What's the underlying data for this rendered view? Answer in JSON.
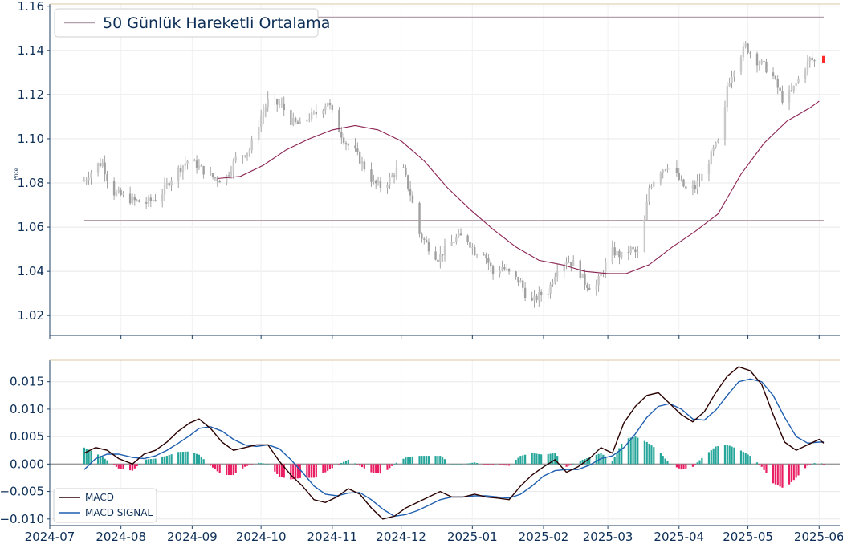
{
  "chart_data": [
    {
      "type": "candlestick",
      "ylabel": "Price",
      "ylim": [
        1.011,
        1.161
      ],
      "y_ticks": [
        "1.02",
        "1.04",
        "1.06",
        "1.08",
        "1.10",
        "1.12",
        "1.14",
        "1.16"
      ],
      "x_range": [
        "2024-07-01",
        "2025-06-10"
      ],
      "horizontal_lines": [
        1.155,
        1.063
      ],
      "legend": {
        "position": "top-left",
        "label": "50 Günlük Hareketli Ortalama"
      },
      "grid": true,
      "ma50": [
        [
          "2024-09-12",
          1.082
        ],
        [
          "2024-09-22",
          1.083
        ],
        [
          "2024-10-02",
          1.088
        ],
        [
          "2024-10-12",
          1.095
        ],
        [
          "2024-10-22",
          1.1
        ],
        [
          "2024-11-01",
          1.104
        ],
        [
          "2024-11-11",
          1.106
        ],
        [
          "2024-11-21",
          1.104
        ],
        [
          "2024-12-01",
          1.099
        ],
        [
          "2024-12-11",
          1.09
        ],
        [
          "2024-12-21",
          1.078
        ],
        [
          "2024-12-31",
          1.068
        ],
        [
          "2025-01-10",
          1.059
        ],
        [
          "2025-01-20",
          1.051
        ],
        [
          "2025-01-30",
          1.045
        ],
        [
          "2025-02-09",
          1.043
        ],
        [
          "2025-02-19",
          1.04
        ],
        [
          "2025-03-01",
          1.039
        ],
        [
          "2025-03-09",
          1.039
        ],
        [
          "2025-03-19",
          1.043
        ],
        [
          "2025-03-29",
          1.051
        ],
        [
          "2025-04-08",
          1.058
        ],
        [
          "2025-04-18",
          1.066
        ],
        [
          "2025-04-28",
          1.084
        ],
        [
          "2025-05-08",
          1.098
        ],
        [
          "2025-05-18",
          1.108
        ],
        [
          "2025-05-28",
          1.114
        ],
        [
          "2025-06-01",
          1.117
        ]
      ],
      "price_path": [
        [
          "2024-07-16",
          1.081
        ],
        [
          "2024-07-21",
          1.088
        ],
        [
          "2024-07-24",
          1.089
        ],
        [
          "2024-07-28",
          1.076
        ],
        [
          "2024-08-02",
          1.074
        ],
        [
          "2024-08-06",
          1.072
        ],
        [
          "2024-08-12",
          1.071
        ],
        [
          "2024-08-18",
          1.074
        ],
        [
          "2024-08-24",
          1.084
        ],
        [
          "2024-08-30",
          1.09
        ],
        [
          "2024-09-03",
          1.088
        ],
        [
          "2024-09-09",
          1.083
        ],
        [
          "2024-09-15",
          1.081
        ],
        [
          "2024-09-20",
          1.091
        ],
        [
          "2024-09-26",
          1.095
        ],
        [
          "2024-10-01",
          1.11
        ],
        [
          "2024-10-04",
          1.117
        ],
        [
          "2024-10-10",
          1.115
        ],
        [
          "2024-10-14",
          1.108
        ],
        [
          "2024-10-18",
          1.106
        ],
        [
          "2024-10-22",
          1.11
        ],
        [
          "2024-10-26",
          1.112
        ],
        [
          "2024-10-30",
          1.117
        ],
        [
          "2024-11-03",
          1.106
        ],
        [
          "2024-11-07",
          1.098
        ],
        [
          "2024-11-11",
          1.094
        ],
        [
          "2024-11-15",
          1.087
        ],
        [
          "2024-11-19",
          1.08
        ],
        [
          "2024-11-23",
          1.078
        ],
        [
          "2024-11-27",
          1.083
        ],
        [
          "2024-12-01",
          1.089
        ],
        [
          "2024-12-05",
          1.075
        ],
        [
          "2024-12-09",
          1.057
        ],
        [
          "2024-12-13",
          1.051
        ],
        [
          "2024-12-17",
          1.046
        ],
        [
          "2024-12-21",
          1.051
        ],
        [
          "2024-12-25",
          1.055
        ],
        [
          "2024-12-29",
          1.056
        ],
        [
          "2025-01-02",
          1.049
        ],
        [
          "2025-01-06",
          1.049
        ],
        [
          "2025-01-10",
          1.039
        ],
        [
          "2025-01-14",
          1.042
        ],
        [
          "2025-01-18",
          1.038
        ],
        [
          "2025-01-22",
          1.035
        ],
        [
          "2025-01-26",
          1.025
        ],
        [
          "2025-01-30",
          1.029
        ],
        [
          "2025-02-03",
          1.031
        ],
        [
          "2025-02-07",
          1.042
        ],
        [
          "2025-02-11",
          1.045
        ],
        [
          "2025-02-15",
          1.043
        ],
        [
          "2025-02-19",
          1.035
        ],
        [
          "2025-02-23",
          1.031
        ],
        [
          "2025-02-27",
          1.041
        ],
        [
          "2025-03-03",
          1.049
        ],
        [
          "2025-03-07",
          1.047
        ],
        [
          "2025-03-11",
          1.05
        ],
        [
          "2025-03-15",
          1.047
        ],
        [
          "2025-03-19",
          1.078
        ],
        [
          "2025-03-23",
          1.085
        ],
        [
          "2025-03-27",
          1.088
        ],
        [
          "2025-03-31",
          1.083
        ],
        [
          "2025-04-04",
          1.077
        ],
        [
          "2025-04-08",
          1.078
        ],
        [
          "2025-04-12",
          1.085
        ],
        [
          "2025-04-16",
          1.095
        ],
        [
          "2025-04-20",
          1.102
        ],
        [
          "2025-04-22",
          1.124
        ],
        [
          "2025-04-26",
          1.135
        ],
        [
          "2025-04-30",
          1.142
        ],
        [
          "2025-05-04",
          1.136
        ],
        [
          "2025-05-08",
          1.133
        ],
        [
          "2025-05-12",
          1.128
        ],
        [
          "2025-05-16",
          1.118
        ],
        [
          "2025-05-20",
          1.121
        ],
        [
          "2025-05-24",
          1.129
        ],
        [
          "2025-05-28",
          1.136
        ],
        [
          "2025-06-01",
          1.134
        ]
      ]
    },
    {
      "type": "line+bar",
      "ylim": [
        -0.0112,
        0.0189
      ],
      "y_ticks": [
        "−0.010",
        "−0.005",
        "0.000",
        "0.005",
        "0.010",
        "0.015"
      ],
      "x_ticks": [
        "2024-07",
        "2024-08",
        "2024-09",
        "2024-10",
        "2024-11",
        "2024-12",
        "2025-01",
        "2025-02",
        "2025-03",
        "2025-04",
        "2025-05",
        "2025-06"
      ],
      "legend": {
        "position": "lower-left"
      },
      "series": [
        {
          "name": "MACD",
          "color": "#2a0000",
          "points": [
            [
              "2024-07-16",
              0.002
            ],
            [
              "2024-07-21",
              0.003
            ],
            [
              "2024-07-26",
              0.0025
            ],
            [
              "2024-07-31",
              0.001
            ],
            [
              "2024-08-06",
              0.0
            ],
            [
              "2024-08-11",
              0.0018
            ],
            [
              "2024-08-16",
              0.0025
            ],
            [
              "2024-08-21",
              0.004
            ],
            [
              "2024-08-26",
              0.006
            ],
            [
              "2024-08-31",
              0.0075
            ],
            [
              "2024-09-04",
              0.0082
            ],
            [
              "2024-09-09",
              0.0065
            ],
            [
              "2024-09-14",
              0.004
            ],
            [
              "2024-09-19",
              0.0025
            ],
            [
              "2024-09-24",
              0.003
            ],
            [
              "2024-09-29",
              0.0035
            ],
            [
              "2024-10-04",
              0.0035
            ],
            [
              "2024-10-09",
              0.0005
            ],
            [
              "2024-10-14",
              -0.002
            ],
            [
              "2024-10-19",
              -0.004
            ],
            [
              "2024-10-24",
              -0.0065
            ],
            [
              "2024-10-29",
              -0.007
            ],
            [
              "2024-11-03",
              -0.006
            ],
            [
              "2024-11-08",
              -0.0045
            ],
            [
              "2024-11-13",
              -0.0055
            ],
            [
              "2024-11-18",
              -0.008
            ],
            [
              "2024-11-23",
              -0.01
            ],
            [
              "2024-11-28",
              -0.0095
            ],
            [
              "2024-12-03",
              -0.008
            ],
            [
              "2024-12-08",
              -0.007
            ],
            [
              "2024-12-13",
              -0.006
            ],
            [
              "2024-12-18",
              -0.005
            ],
            [
              "2024-12-23",
              -0.006
            ],
            [
              "2024-12-28",
              -0.006
            ],
            [
              "2025-01-02",
              -0.0055
            ],
            [
              "2025-01-07",
              -0.006
            ],
            [
              "2025-01-12",
              -0.0062
            ],
            [
              "2025-01-17",
              -0.0065
            ],
            [
              "2025-01-22",
              -0.004
            ],
            [
              "2025-01-27",
              -0.002
            ],
            [
              "2025-02-01",
              -0.0005
            ],
            [
              "2025-02-06",
              0.0008
            ],
            [
              "2025-02-11",
              -0.0015
            ],
            [
              "2025-02-16",
              -0.0005
            ],
            [
              "2025-02-21",
              0.001
            ],
            [
              "2025-02-26",
              0.003
            ],
            [
              "2025-03-03",
              0.002
            ],
            [
              "2025-03-08",
              0.0075
            ],
            [
              "2025-03-13",
              0.0105
            ],
            [
              "2025-03-18",
              0.0125
            ],
            [
              "2025-03-23",
              0.013
            ],
            [
              "2025-03-28",
              0.011
            ],
            [
              "2025-04-02",
              0.009
            ],
            [
              "2025-04-07",
              0.0077
            ],
            [
              "2025-04-12",
              0.0095
            ],
            [
              "2025-04-17",
              0.013
            ],
            [
              "2025-04-22",
              0.016
            ],
            [
              "2025-04-27",
              0.0177
            ],
            [
              "2025-05-02",
              0.017
            ],
            [
              "2025-05-07",
              0.0145
            ],
            [
              "2025-05-12",
              0.009
            ],
            [
              "2025-05-17",
              0.004
            ],
            [
              "2025-05-22",
              0.0025
            ],
            [
              "2025-05-27",
              0.0035
            ],
            [
              "2025-06-01",
              0.0045
            ],
            [
              "2025-06-03",
              0.0038
            ]
          ]
        },
        {
          "name": "MACD SIGNAL",
          "color": "#1f5fb0",
          "points": [
            [
              "2024-07-16",
              -0.001
            ],
            [
              "2024-07-21",
              0.001
            ],
            [
              "2024-07-26",
              0.0018
            ],
            [
              "2024-07-31",
              0.0018
            ],
            [
              "2024-08-06",
              0.0012
            ],
            [
              "2024-08-11",
              0.001
            ],
            [
              "2024-08-16",
              0.0015
            ],
            [
              "2024-08-21",
              0.0025
            ],
            [
              "2024-08-26",
              0.0038
            ],
            [
              "2024-08-31",
              0.0052
            ],
            [
              "2024-09-04",
              0.0065
            ],
            [
              "2024-09-09",
              0.0068
            ],
            [
              "2024-09-14",
              0.006
            ],
            [
              "2024-09-19",
              0.0045
            ],
            [
              "2024-09-24",
              0.0035
            ],
            [
              "2024-09-29",
              0.0032
            ],
            [
              "2024-10-04",
              0.0035
            ],
            [
              "2024-10-09",
              0.0028
            ],
            [
              "2024-10-14",
              0.0008
            ],
            [
              "2024-10-19",
              -0.0015
            ],
            [
              "2024-10-24",
              -0.004
            ],
            [
              "2024-10-29",
              -0.0055
            ],
            [
              "2024-11-03",
              -0.0058
            ],
            [
              "2024-11-08",
              -0.0053
            ],
            [
              "2024-11-13",
              -0.0052
            ],
            [
              "2024-11-18",
              -0.0065
            ],
            [
              "2024-11-23",
              -0.0082
            ],
            [
              "2024-11-28",
              -0.0095
            ],
            [
              "2024-12-03",
              -0.0092
            ],
            [
              "2024-12-08",
              -0.0085
            ],
            [
              "2024-12-13",
              -0.0075
            ],
            [
              "2024-12-18",
              -0.0065
            ],
            [
              "2024-12-23",
              -0.006
            ],
            [
              "2024-12-28",
              -0.006
            ],
            [
              "2025-01-02",
              -0.0058
            ],
            [
              "2025-01-07",
              -0.0058
            ],
            [
              "2025-01-12",
              -0.006
            ],
            [
              "2025-01-17",
              -0.0062
            ],
            [
              "2025-01-22",
              -0.0055
            ],
            [
              "2025-01-27",
              -0.004
            ],
            [
              "2025-02-01",
              -0.0022
            ],
            [
              "2025-02-06",
              -0.0012
            ],
            [
              "2025-02-11",
              -0.001
            ],
            [
              "2025-02-16",
              -0.001
            ],
            [
              "2025-02-21",
              -0.0002
            ],
            [
              "2025-02-26",
              0.001
            ],
            [
              "2025-03-03",
              0.0015
            ],
            [
              "2025-03-08",
              0.003
            ],
            [
              "2025-03-13",
              0.0055
            ],
            [
              "2025-03-18",
              0.0085
            ],
            [
              "2025-03-23",
              0.0105
            ],
            [
              "2025-03-28",
              0.011
            ],
            [
              "2025-04-02",
              0.01
            ],
            [
              "2025-04-07",
              0.0082
            ],
            [
              "2025-04-12",
              0.008
            ],
            [
              "2025-04-17",
              0.0098
            ],
            [
              "2025-04-22",
              0.0125
            ],
            [
              "2025-04-27",
              0.015
            ],
            [
              "2025-05-02",
              0.0155
            ],
            [
              "2025-05-07",
              0.015
            ],
            [
              "2025-05-12",
              0.0125
            ],
            [
              "2025-05-17",
              0.0085
            ],
            [
              "2025-05-22",
              0.005
            ],
            [
              "2025-05-27",
              0.0038
            ],
            [
              "2025-06-01",
              0.004
            ],
            [
              "2025-06-03",
              0.004
            ]
          ]
        }
      ],
      "histogram_colors": {
        "positive": "#26a69a",
        "negative": "#e91e63"
      }
    }
  ]
}
